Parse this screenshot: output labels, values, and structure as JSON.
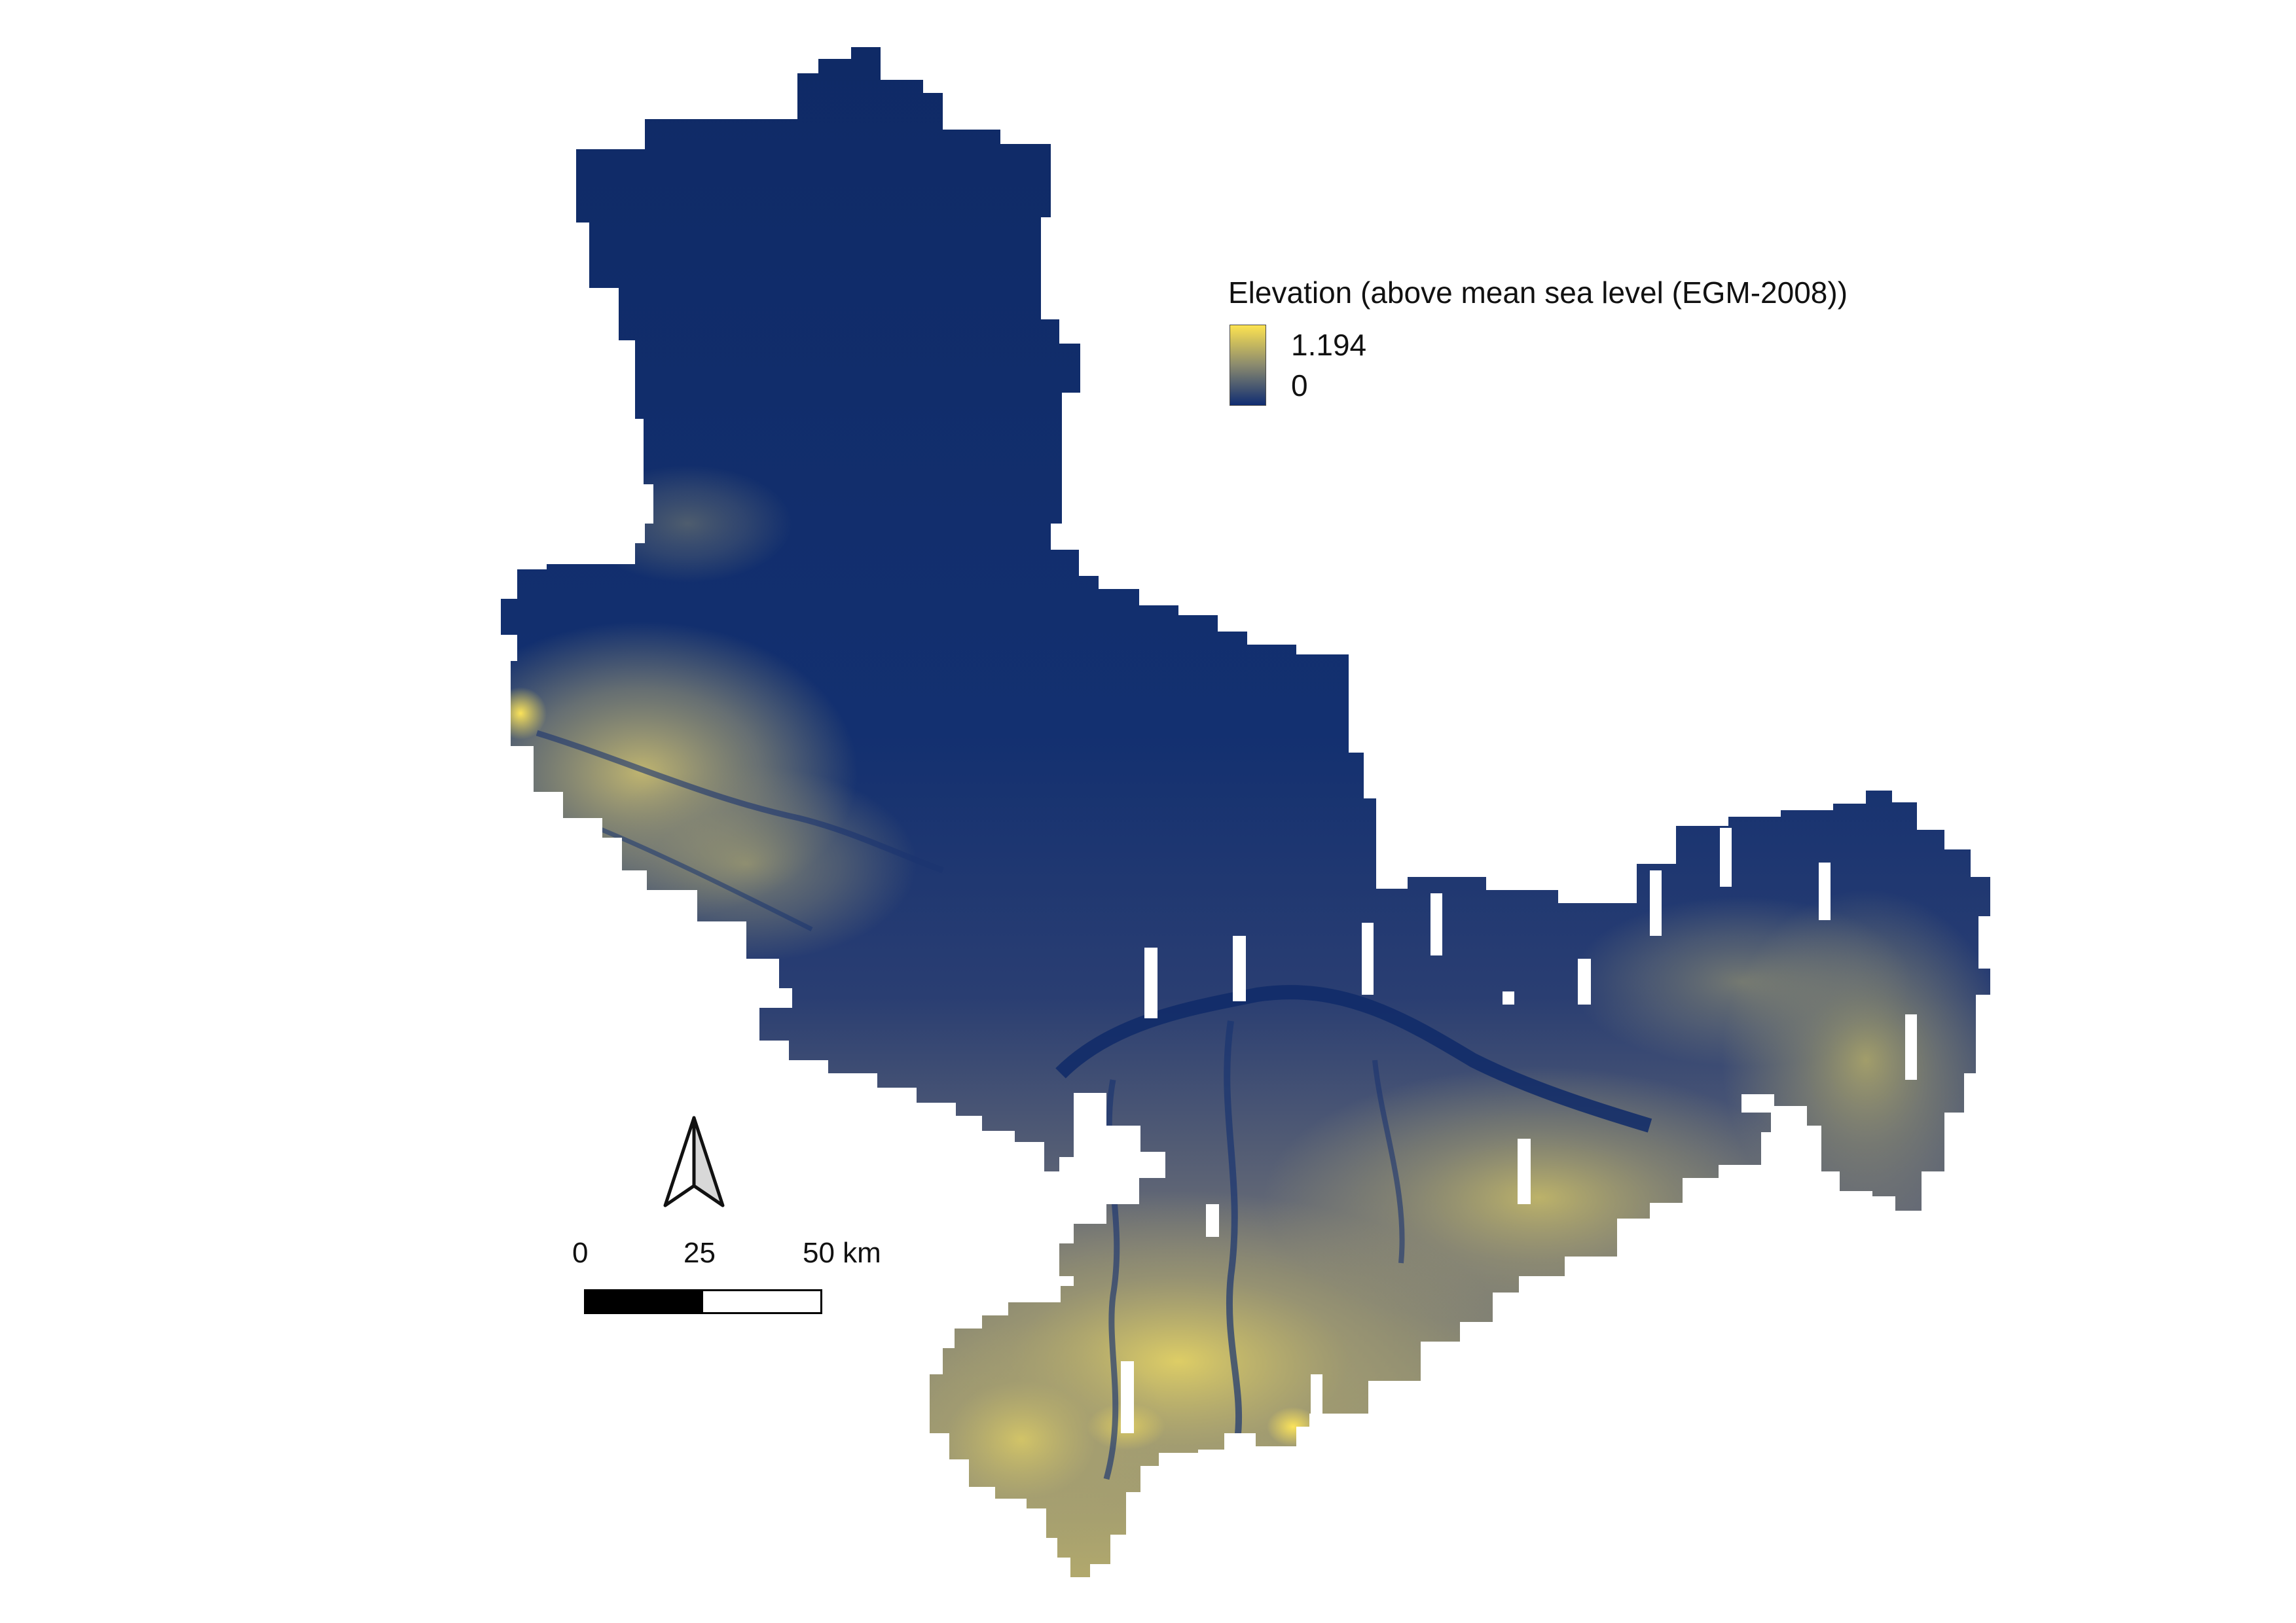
{
  "legend": {
    "title": "Elevation (above mean sea level (EGM-2008))",
    "max_label": "1.194",
    "min_label": "0",
    "ramp_colors": {
      "high": "#fde350",
      "mid": "#8a8a6e",
      "low": "#102d72"
    }
  },
  "scale": {
    "label_0": "0",
    "label_25": "25",
    "label_50": "50 km"
  },
  "north_arrow": {
    "icon": "north-arrow-icon"
  },
  "map": {
    "colors": {
      "lowland": "#14306e",
      "lowland_dark": "#0e2660",
      "midland": "#5c6478",
      "highland": "#9a9670",
      "peak": "#e8d75a",
      "river": "#0f2a68"
    }
  }
}
